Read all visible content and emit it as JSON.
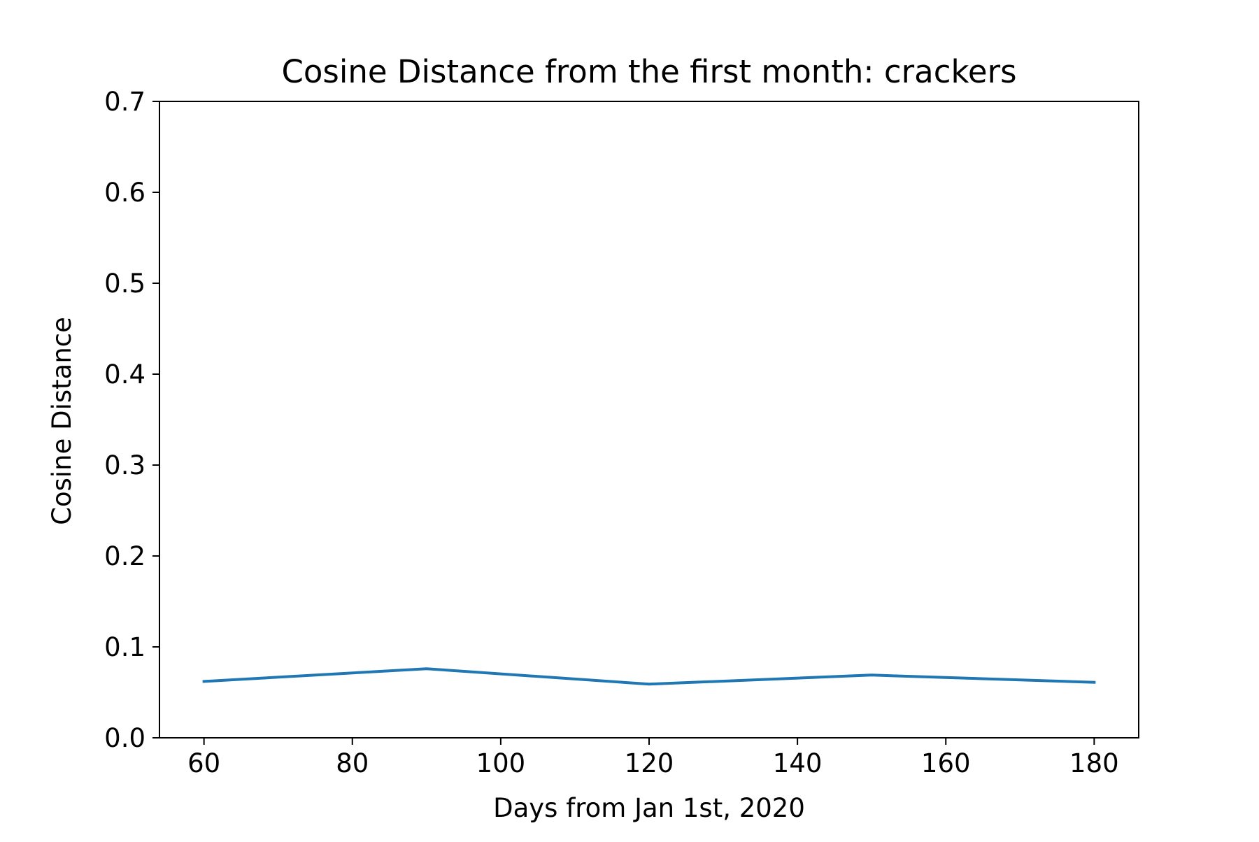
{
  "chart_data": {
    "type": "line",
    "title": "Cosine Distance from the first month: crackers",
    "xlabel": "Days from Jan 1st, 2020",
    "ylabel": "Cosine Distance",
    "xlim": [
      54,
      186
    ],
    "ylim": [
      0,
      0.7
    ],
    "x_ticks": [
      60,
      80,
      100,
      120,
      140,
      160,
      180
    ],
    "y_ticks": [
      0.0,
      0.1,
      0.2,
      0.3,
      0.4,
      0.5,
      0.6,
      0.7
    ],
    "x_tick_labels": [
      "60",
      "80",
      "100",
      "120",
      "140",
      "160",
      "180"
    ],
    "y_tick_labels": [
      "0.0",
      "0.1",
      "0.2",
      "0.3",
      "0.4",
      "0.5",
      "0.6",
      "0.7"
    ],
    "grid": false,
    "series": [
      {
        "color": "#1f77b4",
        "x": [
          60,
          90,
          120,
          150,
          180
        ],
        "y": [
          0.062,
          0.076,
          0.059,
          0.069,
          0.061
        ]
      }
    ]
  }
}
